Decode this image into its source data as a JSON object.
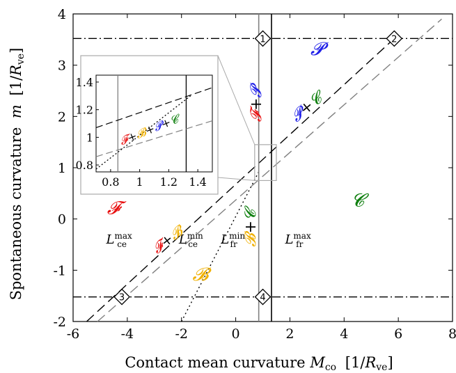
{
  "chart_data": {
    "type": "line",
    "xlabel": "Contact mean curvature",
    "xlabel_symbol": "M",
    "xlabel_symbol_sub": "co",
    "xlabel_unit_open": "[1/",
    "xlabel_unit_symbol": "R",
    "xlabel_unit_sub": "ve",
    "xlabel_unit_close": "]",
    "ylabel": "Spontaneous curvature",
    "ylabel_symbol": "m",
    "ylabel_unit_open": "[1/",
    "ylabel_unit_symbol": "R",
    "ylabel_unit_sub": "ve",
    "ylabel_unit_close": "]",
    "xlim": [
      -6,
      8
    ],
    "ylim": [
      -2,
      4
    ],
    "xticks": [
      "-6",
      "-4",
      "-2",
      "0",
      "2",
      "4",
      "6",
      "8"
    ],
    "yticks": [
      "-2",
      "-1",
      "0",
      "1",
      "2",
      "3",
      "4"
    ],
    "grid": false,
    "legend": "none",
    "series": [
      {
        "name": "L_ce^max",
        "style": "dashed",
        "color": "#000000",
        "x": [
          -5.5,
          5.85
        ],
        "y": [
          -2.0,
          3.52
        ]
      },
      {
        "name": "L_ce^min",
        "style": "dashed",
        "color": "#808080",
        "x": [
          -5.1,
          7.6
        ],
        "y": [
          -2.0,
          3.9
        ]
      },
      {
        "name": "L_fr^min",
        "style": "dotted",
        "color": "#000000",
        "x": [
          -2.0,
          0.85
        ],
        "y": [
          -2.0,
          0.92
        ]
      },
      {
        "name": "L_fr^max",
        "style": "solid",
        "color": "#000000",
        "x": [
          1.32,
          1.32
        ],
        "y": [
          -2,
          4
        ]
      },
      {
        "name": "vertical-grey",
        "style": "solid",
        "color": "#808080",
        "x": [
          0.85,
          0.85
        ],
        "y": [
          -2,
          4
        ]
      },
      {
        "name": "horizontal-top",
        "style": "dashdot",
        "color": "#000000",
        "x": [
          -6,
          8
        ],
        "y": [
          3.52,
          3.52
        ]
      },
      {
        "name": "horizontal-bottom",
        "style": "dashdot",
        "color": "#000000",
        "x": [
          -6,
          8
        ],
        "y": [
          -1.52,
          -1.52
        ]
      }
    ],
    "markers": [
      {
        "label": "1",
        "x": 1.0,
        "y": 3.52
      },
      {
        "label": "2",
        "x": 5.85,
        "y": 3.52
      },
      {
        "label": "3",
        "x": -4.2,
        "y": -1.52
      },
      {
        "label": "4",
        "x": 1.0,
        "y": -1.52
      }
    ],
    "line_labels": [
      {
        "main": "L",
        "sub": "ce",
        "sup": "max",
        "x": -4.3,
        "y": -0.48
      },
      {
        "main": "L",
        "sub": "ce",
        "sup": "min",
        "x": -1.65,
        "y": -0.48
      },
      {
        "main": "L",
        "sub": "fr",
        "sup": "min",
        "x": -0.1,
        "y": -0.48
      },
      {
        "main": "L",
        "sub": "fr",
        "sup": "max",
        "x": 2.3,
        "y": -0.48
      }
    ],
    "region_labels": [
      {
        "text": "𝓟",
        "color": "#2020e8",
        "x": 3.0,
        "y": 3.2
      },
      {
        "text": "𝓕",
        "color": "#e81010",
        "x": -4.5,
        "y": 0.1
      },
      {
        "text": "𝓒",
        "color": "#108010",
        "x": 4.5,
        "y": 0.25
      },
      {
        "text": "𝓑",
        "color": "#f0b000",
        "x": -1.3,
        "y": -1.2
      }
    ],
    "inset": {
      "xlim": [
        0.7,
        1.5
      ],
      "ylim": [
        0.75,
        1.45
      ],
      "xticks": [
        "0.8",
        "1",
        "1.2",
        "1.4"
      ],
      "yticks": [
        "0.8",
        "1",
        "1.2",
        "1.4"
      ]
    }
  }
}
